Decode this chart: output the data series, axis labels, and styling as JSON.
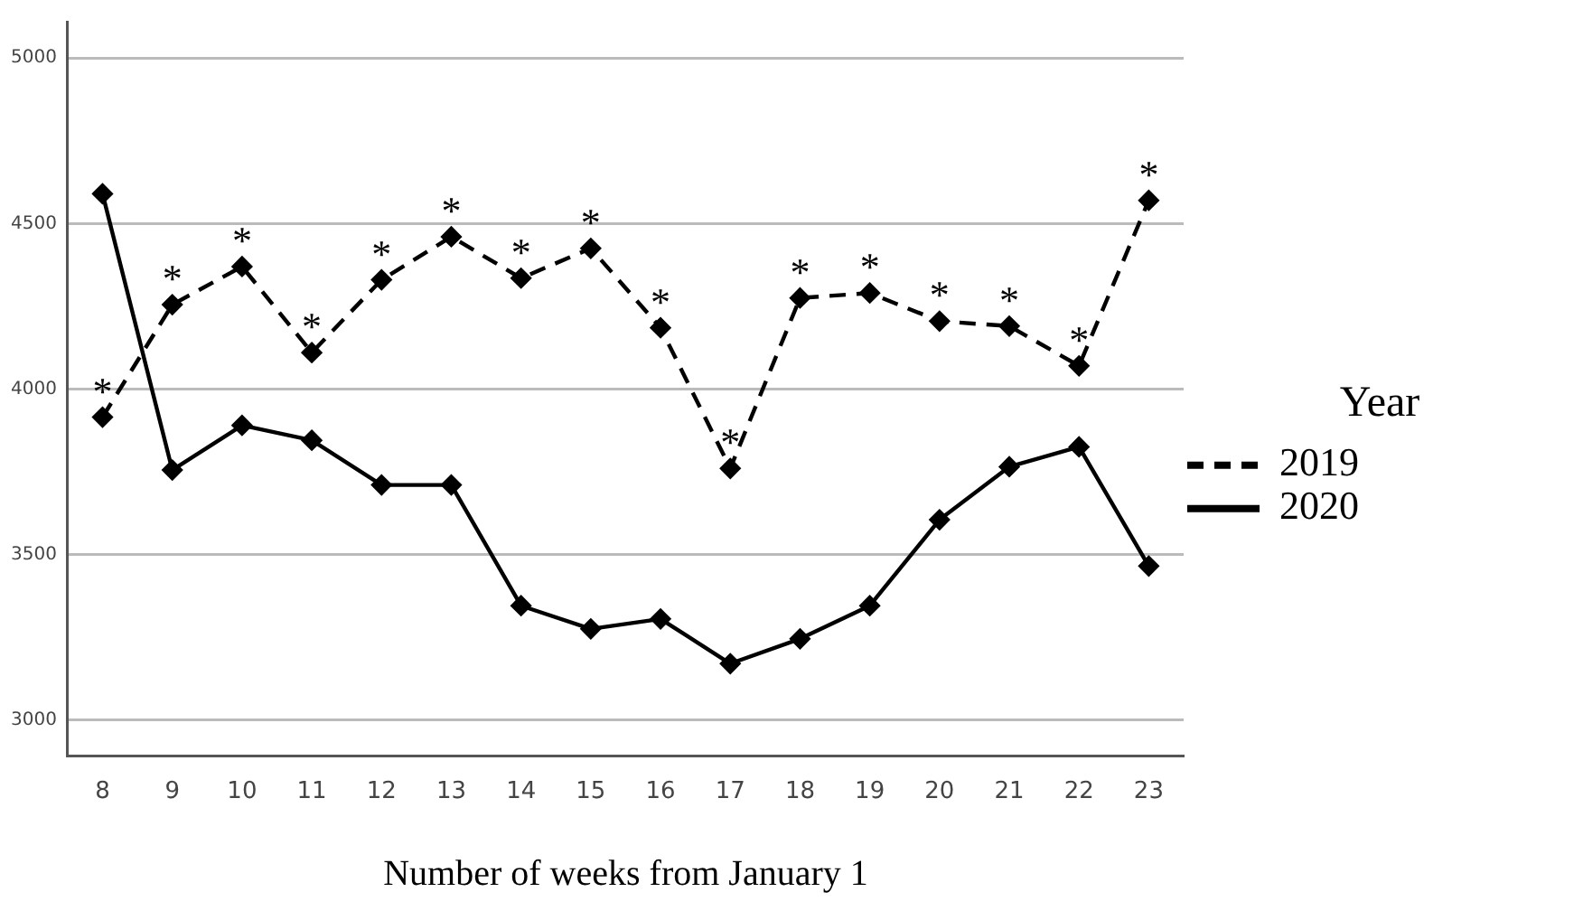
{
  "chart_data": {
    "type": "line",
    "xlabel": "Number of weeks from January 1",
    "legend_title": "Year",
    "categories": [
      "8",
      "9",
      "10",
      "11",
      "12",
      "13",
      "14",
      "15",
      "16",
      "17",
      "18",
      "19",
      "20",
      "21",
      "22",
      "23"
    ],
    "series": [
      {
        "name": "2019",
        "color": "#000000",
        "line_style": "dashed",
        "values": [
          3915,
          4255,
          4370,
          4110,
          4330,
          4460,
          4335,
          4425,
          4185,
          3760,
          4275,
          4290,
          4205,
          4190,
          4070,
          4570
        ]
      },
      {
        "name": "2020",
        "color": "#000000",
        "line_style": "solid",
        "values": [
          4590,
          3755,
          3890,
          3845,
          3710,
          3710,
          3345,
          3275,
          3305,
          3170,
          3245,
          3345,
          3605,
          3765,
          3825,
          3465
        ]
      }
    ],
    "ylim": [
      2890,
      5110
    ],
    "yticks": [
      3000,
      3500,
      4000,
      4500,
      5000
    ],
    "grid": "y",
    "legend": "right",
    "marker": "diamond",
    "annotations": [
      {
        "text": "*",
        "x": "8",
        "y": 3915
      },
      {
        "text": "*",
        "x": "9",
        "y": 4255
      },
      {
        "text": "*",
        "x": "10",
        "y": 4370
      },
      {
        "text": "*",
        "x": "11",
        "y": 4110
      },
      {
        "text": "*",
        "x": "12",
        "y": 4330
      },
      {
        "text": "*",
        "x": "13",
        "y": 4460
      },
      {
        "text": "*",
        "x": "14",
        "y": 4335
      },
      {
        "text": "*",
        "x": "15",
        "y": 4425
      },
      {
        "text": "*",
        "x": "16",
        "y": 4185
      },
      {
        "text": "*",
        "x": "17",
        "y": 3760
      },
      {
        "text": "*",
        "x": "18",
        "y": 4275
      },
      {
        "text": "*",
        "x": "19",
        "y": 4290
      },
      {
        "text": "*",
        "x": "20",
        "y": 4205
      },
      {
        "text": "*",
        "x": "21",
        "y": 4190
      },
      {
        "text": "*",
        "x": "22",
        "y": 4070
      },
      {
        "text": "*",
        "x": "23",
        "y": 4570
      }
    ]
  }
}
